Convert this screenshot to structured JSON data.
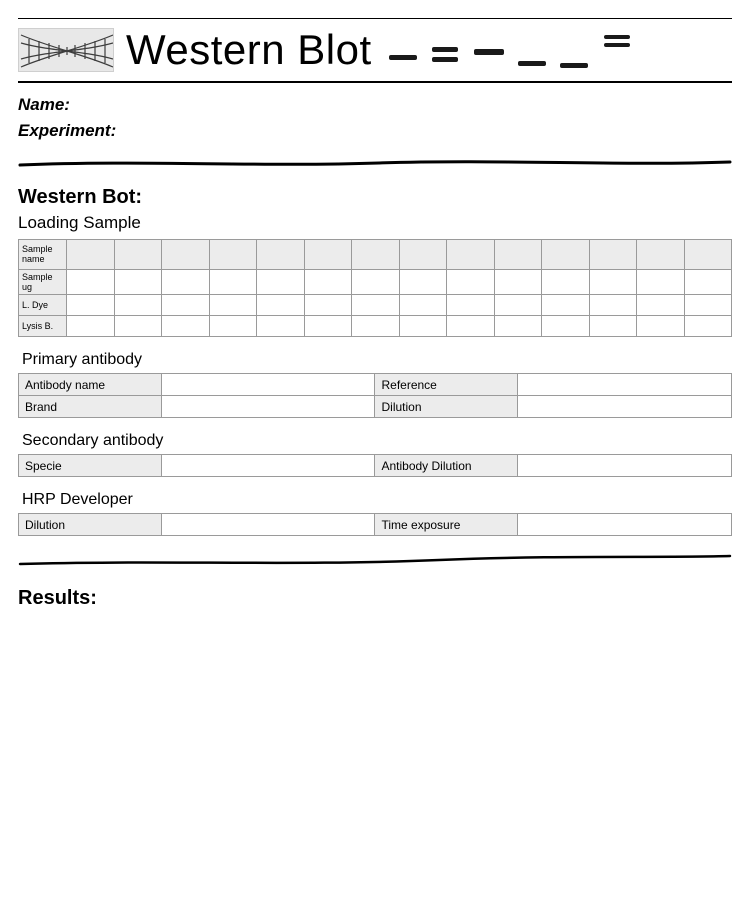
{
  "header": {
    "title": "Western Blot",
    "band_colors": [
      "#1a1a1a",
      "#1a1a1a",
      "#1a1a1a",
      "#1a1a1a",
      "#1a1a1a",
      "#1a1a1a",
      "#1a1a1a",
      "#1a1a1a",
      "#1a1a1a"
    ],
    "logo_bg": "#e8e8e8",
    "logo_stroke": "#2b2b2b"
  },
  "meta": {
    "name_label": "Name:",
    "experiment_label": "Experiment:"
  },
  "divider": {
    "stroke": "#000000",
    "stroke_width": 3
  },
  "section1": {
    "heading": "Western Bot:",
    "subheading": "Loading Sample",
    "table": {
      "rows": [
        "Sample name",
        "Sample ug",
        "L. Dye",
        "Lysis B."
      ],
      "num_columns": 14,
      "header_bg": "#ececec",
      "border_color": "#9a9a9a"
    }
  },
  "primary_antibody": {
    "title": "Primary antibody",
    "fields": [
      {
        "k": "Antibody name",
        "v": ""
      },
      {
        "k": "Reference",
        "v": ""
      },
      {
        "k": "Brand",
        "v": ""
      },
      {
        "k": "Dilution",
        "v": ""
      }
    ]
  },
  "secondary_antibody": {
    "title": "Secondary antibody",
    "fields": [
      {
        "k": "Specie",
        "v": ""
      },
      {
        "k": "Antibody Dilution",
        "v": ""
      }
    ]
  },
  "hrp_developer": {
    "title": "HRP Developer",
    "fields": [
      {
        "k": "Dilution",
        "v": ""
      },
      {
        "k": "Time exposure",
        "v": ""
      }
    ]
  },
  "results": {
    "heading": "Results:"
  },
  "colors": {
    "page_bg": "#ffffff",
    "text": "#000000",
    "cell_bg": "#ececec"
  }
}
